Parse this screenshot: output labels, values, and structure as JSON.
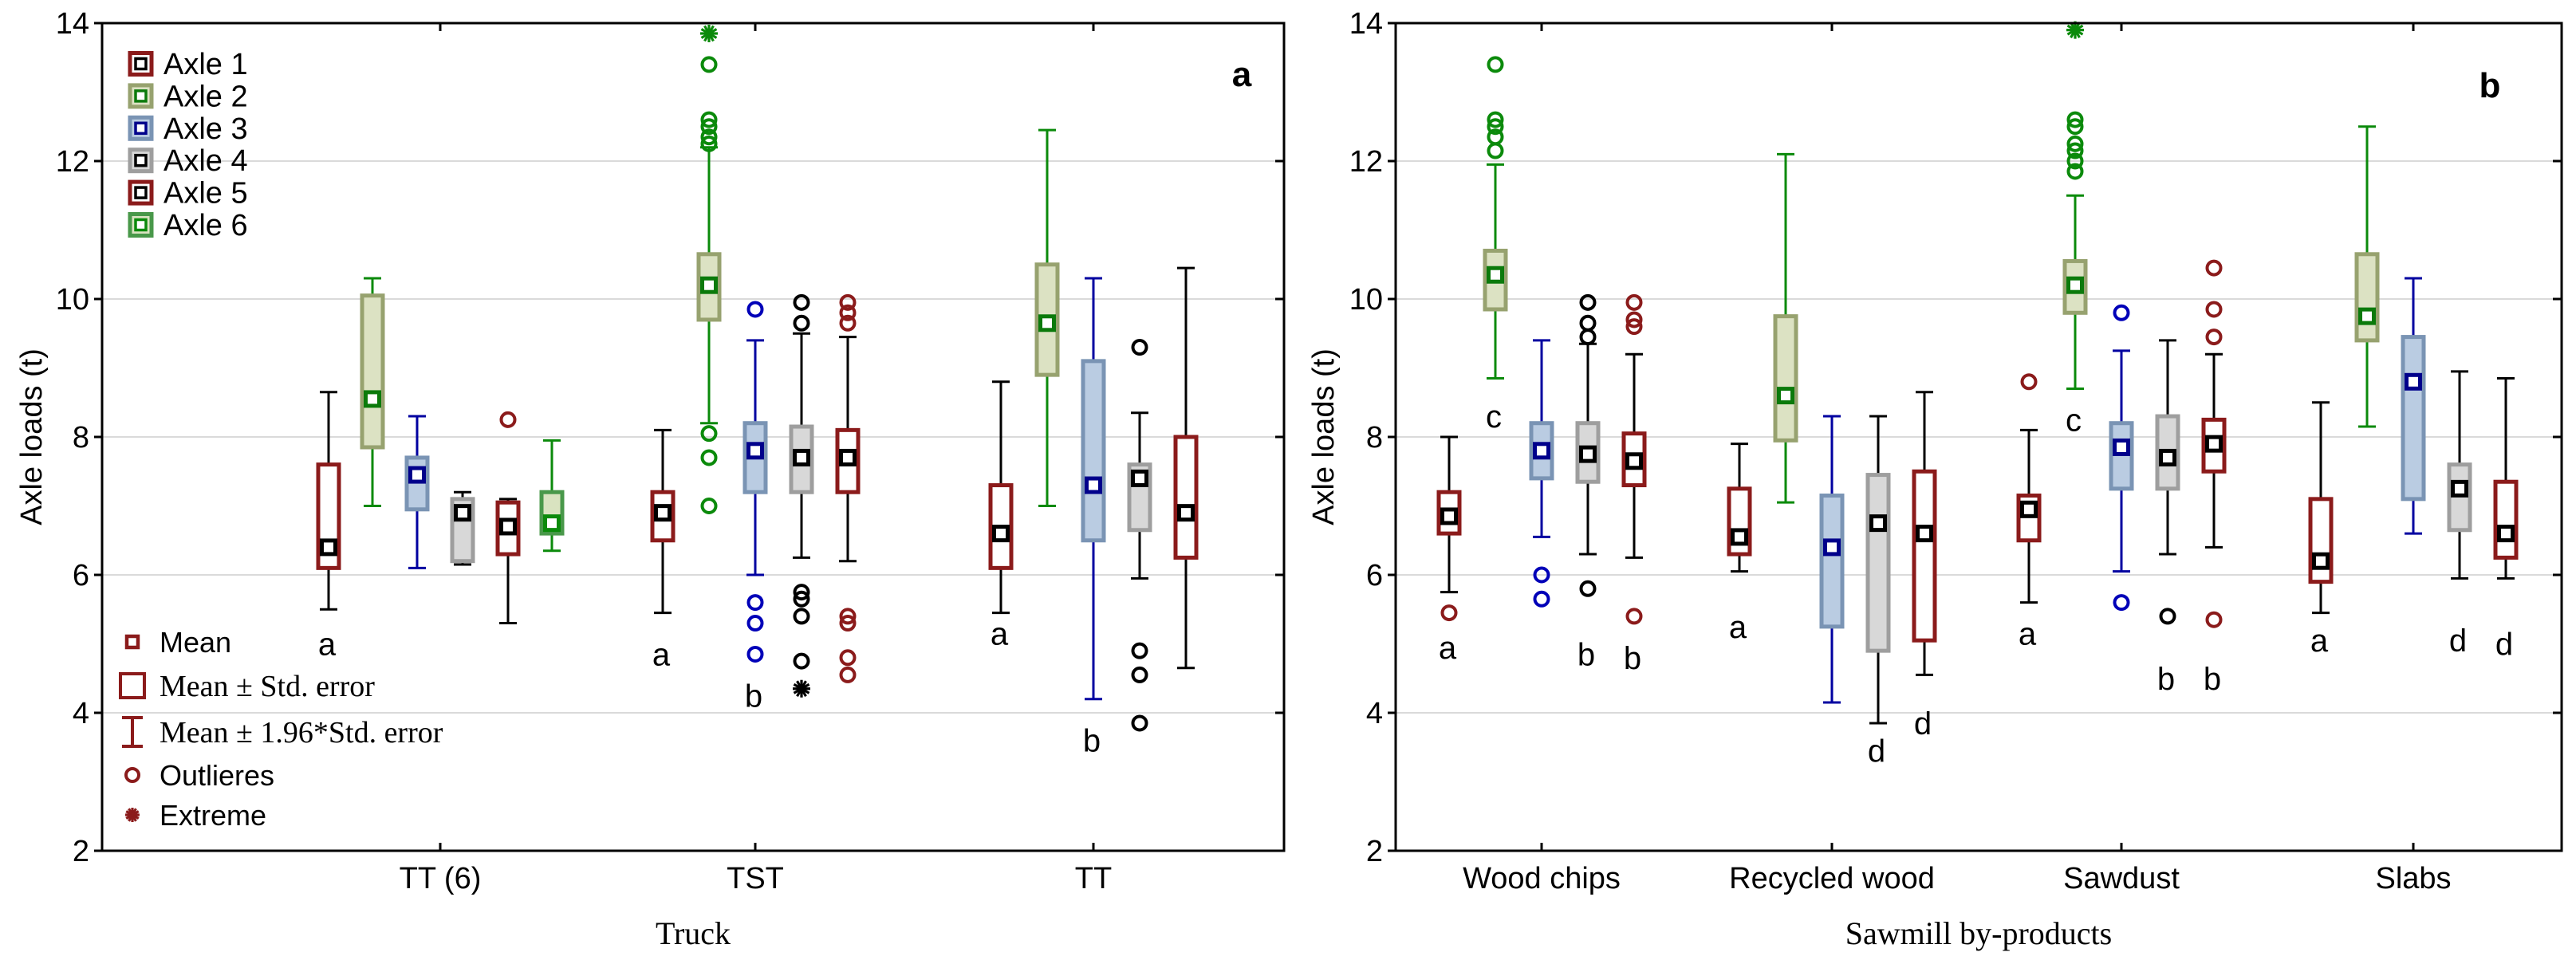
{
  "figure": {
    "background": "#ffffff",
    "y_axis_title": "Axle loads (t)",
    "y_ticks": [
      2,
      4,
      6,
      8,
      10,
      12,
      14
    ],
    "ylim": [
      2,
      14
    ]
  },
  "axle_legend": {
    "entries": [
      {
        "label": "Axle 1",
        "axle": 1
      },
      {
        "label": "Axle 2",
        "axle": 2
      },
      {
        "label": "Axle 3",
        "axle": 3
      },
      {
        "label": "Axle 4",
        "axle": 4
      },
      {
        "label": "Axle 5",
        "axle": 5
      },
      {
        "label": "Axle 6",
        "axle": 6
      }
    ]
  },
  "stats_legend": {
    "color": "#8B1B1B",
    "entries": [
      {
        "glyph": "mean-square",
        "label": "Mean",
        "serif": false
      },
      {
        "glyph": "se-box",
        "label": "Mean ± Std. error",
        "serif": true
      },
      {
        "glyph": "ci-whisker",
        "label": "Mean ± 1.96*Std. error",
        "serif": true
      },
      {
        "glyph": "outlier-circle",
        "label": "Outlieres",
        "serif": false
      },
      {
        "glyph": "extreme-asterisk",
        "label": "Extreme",
        "serif": false
      }
    ]
  },
  "axle_styles": {
    "1": {
      "box": "#8B1B1B",
      "fill": "#FFFFFF",
      "mean": "#000000",
      "whisker": "#000000",
      "outlier": "#8B1B1B"
    },
    "2": {
      "box": "#97A26F",
      "fill": "#DCE2C3",
      "mean": "#0B7A0B",
      "whisker": "#0B8A0B",
      "outlier": "#0B8A0B"
    },
    "3": {
      "box": "#7A94B4",
      "fill": "#BACCE2",
      "mean": "#00008B",
      "whisker": "#0000A0",
      "outlier": "#0000B8"
    },
    "4": {
      "box": "#9E9E9E",
      "fill": "#D8D8D8",
      "mean": "#000000",
      "whisker": "#000000",
      "outlier": "#000000"
    },
    "5": {
      "box": "#8B1B1B",
      "fill": "#FFFFFF",
      "mean": "#000000",
      "whisker": "#000000",
      "outlier": "#8B1B1B"
    },
    "6": {
      "box": "#49984A",
      "fill": "#D9E3C0",
      "mean": "#0B8A0B",
      "whisker": "#0B8A0B",
      "outlier": "#0B8A0B"
    }
  },
  "chart_data": [
    {
      "type": "box",
      "panel_letter": "a",
      "xlabel": "Truck",
      "ylabel": "Axle loads (t)",
      "ylim": [
        2,
        14
      ],
      "yticks": [
        2,
        4,
        6,
        8,
        10,
        12,
        14
      ],
      "grid": "horizontal",
      "categories": [
        "TT (6)",
        "TST",
        "TT"
      ],
      "groups": [
        {
          "category": "TT (6)",
          "boxes": [
            {
              "axle": 1,
              "mean": 6.4,
              "se_box": [
                6.1,
                7.6
              ],
              "whiskers": [
                5.5,
                8.65
              ],
              "outliers": [],
              "extremes": [],
              "sig_letter": "a",
              "sig_letter_y": 5.0
            },
            {
              "axle": 2,
              "mean": 8.55,
              "se_box": [
                7.85,
                10.05
              ],
              "whiskers": [
                7.0,
                10.3
              ],
              "outliers": [],
              "extremes": []
            },
            {
              "axle": 3,
              "mean": 7.45,
              "se_box": [
                6.95,
                7.7
              ],
              "whiskers": [
                6.1,
                8.3
              ],
              "outliers": [],
              "extremes": []
            },
            {
              "axle": 4,
              "mean": 6.9,
              "se_box": [
                6.2,
                7.1
              ],
              "whiskers": [
                6.15,
                7.2
              ],
              "outliers": [],
              "extremes": []
            },
            {
              "axle": 5,
              "mean": 6.7,
              "se_box": [
                6.3,
                7.05
              ],
              "whiskers": [
                5.3,
                7.1
              ],
              "outliers": [
                8.25
              ],
              "extremes": []
            },
            {
              "axle": 6,
              "mean": 6.75,
              "se_box": [
                6.6,
                7.2
              ],
              "whiskers": [
                6.35,
                7.95
              ],
              "outliers": [],
              "extremes": []
            }
          ]
        },
        {
          "category": "TST",
          "boxes": [
            {
              "axle": 1,
              "mean": 6.9,
              "se_box": [
                6.5,
                7.2
              ],
              "whiskers": [
                5.45,
                8.1
              ],
              "outliers": [],
              "extremes": [],
              "sig_letter": "a",
              "sig_letter_y": 4.85
            },
            {
              "axle": 2,
              "mean": 10.2,
              "se_box": [
                9.7,
                10.65
              ],
              "whiskers": [
                8.2,
                12.2
              ],
              "outliers": [
                12.25,
                12.35,
                12.5,
                12.6,
                13.4,
                8.05,
                7.7,
                7.0
              ],
              "extremes": [
                13.85
              ]
            },
            {
              "axle": 3,
              "mean": 7.8,
              "se_box": [
                7.2,
                8.2
              ],
              "whiskers": [
                6.0,
                9.4
              ],
              "outliers": [
                9.85,
                5.6,
                5.3,
                4.85
              ],
              "extremes": [],
              "sig_letter": "b",
              "sig_letter_y": 4.25
            },
            {
              "axle": 4,
              "mean": 7.7,
              "se_box": [
                7.2,
                8.15
              ],
              "whiskers": [
                6.25,
                9.5
              ],
              "outliers": [
                9.95,
                9.65,
                5.75,
                5.65,
                5.4,
                4.75
              ],
              "extremes": [
                4.35
              ]
            },
            {
              "axle": 5,
              "mean": 7.7,
              "se_box": [
                7.2,
                8.1
              ],
              "whiskers": [
                6.2,
                9.45
              ],
              "outliers": [
                9.95,
                9.8,
                9.65,
                5.4,
                5.3,
                4.8,
                4.55
              ],
              "extremes": []
            }
          ]
        },
        {
          "category": "TT",
          "boxes": [
            {
              "axle": 1,
              "mean": 6.6,
              "se_box": [
                6.1,
                7.3
              ],
              "whiskers": [
                5.45,
                8.8
              ],
              "outliers": [],
              "extremes": [],
              "sig_letter": "a",
              "sig_letter_y": 5.15
            },
            {
              "axle": 2,
              "mean": 9.65,
              "se_box": [
                8.9,
                10.5
              ],
              "whiskers": [
                7.0,
                12.45
              ],
              "outliers": [],
              "extremes": []
            },
            {
              "axle": 3,
              "mean": 7.3,
              "se_box": [
                6.5,
                9.1
              ],
              "whiskers": [
                4.2,
                10.3
              ],
              "outliers": [],
              "extremes": [],
              "sig_letter": "b",
              "sig_letter_y": 3.6
            },
            {
              "axle": 4,
              "mean": 7.4,
              "se_box": [
                6.65,
                7.6
              ],
              "whiskers": [
                5.95,
                8.35
              ],
              "outliers": [
                9.3,
                4.9,
                4.55,
                3.85
              ],
              "extremes": []
            },
            {
              "axle": 5,
              "mean": 6.9,
              "se_box": [
                6.25,
                8.0
              ],
              "whiskers": [
                4.65,
                10.45
              ],
              "outliers": [],
              "extremes": []
            }
          ]
        }
      ]
    },
    {
      "type": "box",
      "panel_letter": "b",
      "xlabel": "Sawmill by-products",
      "ylabel": "Axle loads (t)",
      "ylim": [
        2,
        14
      ],
      "yticks": [
        2,
        4,
        6,
        8,
        10,
        12,
        14
      ],
      "grid": "horizontal",
      "categories": [
        "Wood chips",
        "Recycled wood",
        "Sawdust",
        "Slabs"
      ],
      "groups": [
        {
          "category": "Wood chips",
          "boxes": [
            {
              "axle": 1,
              "mean": 6.85,
              "se_box": [
                6.6,
                7.2
              ],
              "whiskers": [
                5.75,
                8.0
              ],
              "outliers": [
                5.45
              ],
              "extremes": [],
              "sig_letter": "a",
              "sig_letter_y": 4.95
            },
            {
              "axle": 2,
              "mean": 10.35,
              "se_box": [
                9.85,
                10.7
              ],
              "whiskers": [
                8.85,
                11.95
              ],
              "outliers": [
                12.15,
                12.35,
                12.5,
                12.6,
                13.4
              ],
              "extremes": [],
              "sig_letter": "c",
              "sig_letter_y": 8.3
            },
            {
              "axle": 3,
              "mean": 7.8,
              "se_box": [
                7.4,
                8.2
              ],
              "whiskers": [
                6.55,
                9.4
              ],
              "outliers": [
                6.0,
                5.65
              ],
              "extremes": []
            },
            {
              "axle": 4,
              "mean": 7.75,
              "se_box": [
                7.35,
                8.2
              ],
              "whiskers": [
                6.3,
                9.35
              ],
              "outliers": [
                9.95,
                9.65,
                9.45,
                5.8
              ],
              "extremes": [],
              "sig_letter": "b",
              "sig_letter_y": 4.85
            },
            {
              "axle": 5,
              "mean": 7.65,
              "se_box": [
                7.3,
                8.05
              ],
              "whiskers": [
                6.25,
                9.2
              ],
              "outliers": [
                9.95,
                9.7,
                9.6,
                5.4
              ],
              "extremes": [],
              "sig_letter": "b",
              "sig_letter_y": 4.8
            }
          ]
        },
        {
          "category": "Recycled wood",
          "boxes": [
            {
              "axle": 1,
              "mean": 6.55,
              "se_box": [
                6.3,
                7.25
              ],
              "whiskers": [
                6.05,
                7.9
              ],
              "outliers": [],
              "extremes": [],
              "sig_letter": "a",
              "sig_letter_y": 5.25
            },
            {
              "axle": 2,
              "mean": 8.6,
              "se_box": [
                7.95,
                9.75
              ],
              "whiskers": [
                7.05,
                12.1
              ],
              "outliers": [],
              "extremes": []
            },
            {
              "axle": 3,
              "mean": 6.4,
              "se_box": [
                5.25,
                7.15
              ],
              "whiskers": [
                4.15,
                8.3
              ],
              "outliers": [],
              "extremes": []
            },
            {
              "axle": 4,
              "mean": 6.75,
              "se_box": [
                4.9,
                7.45
              ],
              "whiskers": [
                3.85,
                8.3
              ],
              "outliers": [],
              "extremes": [],
              "sig_letter": "d",
              "sig_letter_y": 3.45
            },
            {
              "axle": 5,
              "mean": 6.6,
              "se_box": [
                5.05,
                7.5
              ],
              "whiskers": [
                4.55,
                8.65
              ],
              "outliers": [],
              "extremes": [],
              "sig_letter": "d",
              "sig_letter_y": 3.85
            }
          ]
        },
        {
          "category": "Sawdust",
          "boxes": [
            {
              "axle": 1,
              "mean": 6.95,
              "se_box": [
                6.5,
                7.15
              ],
              "whiskers": [
                5.6,
                8.1
              ],
              "outliers": [
                8.8
              ],
              "extremes": [],
              "sig_letter": "a",
              "sig_letter_y": 5.15
            },
            {
              "axle": 2,
              "mean": 10.2,
              "se_box": [
                9.8,
                10.55
              ],
              "whiskers": [
                8.7,
                11.5
              ],
              "outliers": [
                11.85,
                12.0,
                12.15,
                12.25,
                12.5,
                12.6
              ],
              "extremes": [
                13.9
              ],
              "sig_letter": "c",
              "sig_letter_y": 8.25
            },
            {
              "axle": 3,
              "mean": 7.85,
              "se_box": [
                7.25,
                8.2
              ],
              "whiskers": [
                6.05,
                9.25
              ],
              "outliers": [
                9.8,
                5.6
              ],
              "extremes": []
            },
            {
              "axle": 4,
              "mean": 7.7,
              "se_box": [
                7.25,
                8.3
              ],
              "whiskers": [
                6.3,
                9.4
              ],
              "outliers": [
                5.4
              ],
              "extremes": [],
              "sig_letter": "b",
              "sig_letter_y": 4.5
            },
            {
              "axle": 5,
              "mean": 7.9,
              "se_box": [
                7.5,
                8.25
              ],
              "whiskers": [
                6.4,
                9.2
              ],
              "outliers": [
                10.45,
                9.85,
                9.45,
                5.35
              ],
              "extremes": [],
              "sig_letter": "b",
              "sig_letter_y": 4.5
            }
          ]
        },
        {
          "category": "Slabs",
          "boxes": [
            {
              "axle": 1,
              "mean": 6.2,
              "se_box": [
                5.9,
                7.1
              ],
              "whiskers": [
                5.45,
                8.5
              ],
              "outliers": [],
              "extremes": [],
              "sig_letter": "a",
              "sig_letter_y": 5.05
            },
            {
              "axle": 2,
              "mean": 9.75,
              "se_box": [
                9.4,
                10.65
              ],
              "whiskers": [
                8.15,
                12.5
              ],
              "outliers": [],
              "extremes": []
            },
            {
              "axle": 3,
              "mean": 8.8,
              "se_box": [
                7.1,
                9.45
              ],
              "whiskers": [
                6.6,
                10.3
              ],
              "outliers": [],
              "extremes": []
            },
            {
              "axle": 4,
              "mean": 7.25,
              "se_box": [
                6.65,
                7.6
              ],
              "whiskers": [
                5.95,
                8.95
              ],
              "outliers": [],
              "extremes": [],
              "sig_letter": "d",
              "sig_letter_y": 5.05
            },
            {
              "axle": 5,
              "mean": 6.6,
              "se_box": [
                6.25,
                7.35
              ],
              "whiskers": [
                5.95,
                8.85
              ],
              "outliers": [],
              "extremes": [],
              "sig_letter": "d",
              "sig_letter_y": 5.0
            }
          ]
        }
      ]
    }
  ]
}
